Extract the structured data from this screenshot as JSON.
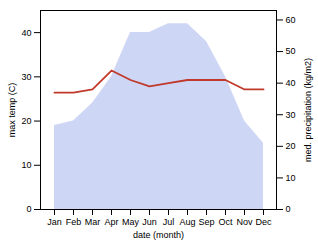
{
  "chart_data": {
    "type": "line",
    "xlabel": "date (month)",
    "ylabel": "max temp (C)",
    "y2label": "med. precipitation (kg/m2)",
    "categories": [
      "Jan",
      "Feb",
      "Mar",
      "Apr",
      "May",
      "Jun",
      "Jul",
      "Aug",
      "Sep",
      "Oct",
      "Nov",
      "Dec"
    ],
    "series": [
      {
        "type": "area",
        "color": "#b8c4f0",
        "values": [
          19,
          20,
          24,
          30,
          40,
          40,
          42,
          42,
          38,
          30,
          20,
          15
        ]
      },
      {
        "type": "line",
        "color": "#c0392b",
        "axis": "y2",
        "values": [
          37,
          37,
          38,
          44,
          41,
          39,
          40,
          41,
          41,
          41,
          38,
          38
        ]
      }
    ],
    "ylim": [
      0,
      45
    ],
    "yticks": [
      0,
      10,
      20,
      30,
      40
    ],
    "y2lim": [
      0,
      63
    ],
    "y2ticks": [
      0,
      10,
      20,
      30,
      40,
      50,
      60
    ],
    "grid": false
  }
}
